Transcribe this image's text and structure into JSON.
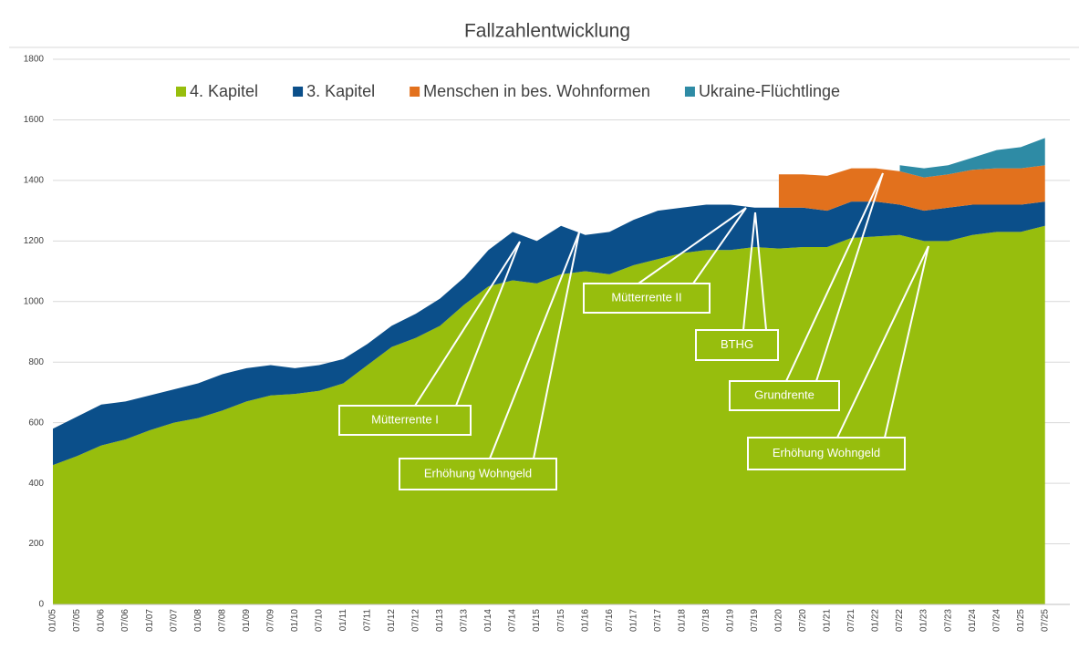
{
  "chart_data": {
    "type": "stacked-area",
    "title": "Fallzahlentwicklung",
    "categories": [
      "01/05",
      "07/05",
      "01/06",
      "07/06",
      "01/07",
      "07/07",
      "01/08",
      "07/08",
      "01/09",
      "07/09",
      "01/10",
      "07/10",
      "01/11",
      "07/11",
      "01/12",
      "07/12",
      "01/13",
      "07/13",
      "01/14",
      "07/14",
      "01/15",
      "07/15",
      "01/16",
      "07/16",
      "01/17",
      "07/17",
      "01/18",
      "07/18",
      "01/19",
      "07/19",
      "01/20",
      "07/20",
      "01/21",
      "07/21",
      "01/22",
      "07/22",
      "01/23",
      "07/23",
      "01/24",
      "07/24",
      "01/25",
      "07/25"
    ],
    "series": [
      {
        "name": "4. Kapitel",
        "color": "#97be0d",
        "values": [
          460,
          490,
          525,
          545,
          575,
          600,
          615,
          640,
          670,
          690,
          695,
          705,
          730,
          790,
          850,
          880,
          920,
          990,
          1050,
          1070,
          1060,
          1090,
          1100,
          1090,
          1120,
          1140,
          1160,
          1170,
          1170,
          1180,
          1175,
          1180,
          1180,
          1210,
          1215,
          1220,
          1200,
          1200,
          1220,
          1230,
          1230,
          1250
        ]
      },
      {
        "name": "3. Kapitel",
        "color": "#0b4f8a",
        "values": [
          120,
          130,
          135,
          125,
          115,
          110,
          115,
          120,
          110,
          100,
          85,
          85,
          80,
          70,
          70,
          80,
          90,
          90,
          120,
          160,
          140,
          160,
          120,
          140,
          150,
          160,
          150,
          150,
          150,
          130,
          135,
          130,
          120,
          120,
          115,
          100,
          100,
          110,
          100,
          90,
          90,
          80
        ]
      },
      {
        "name": "Menschen in bes. Wohnformen",
        "color": "#e2711d",
        "values": [
          null,
          null,
          null,
          null,
          null,
          null,
          null,
          null,
          null,
          null,
          null,
          null,
          null,
          null,
          null,
          null,
          null,
          null,
          null,
          null,
          null,
          null,
          null,
          null,
          null,
          null,
          null,
          null,
          null,
          null,
          110,
          110,
          115,
          110,
          110,
          110,
          110,
          110,
          115,
          120,
          120,
          120
        ]
      },
      {
        "name": "Ukraine-Flüchtlinge",
        "color": "#2e8ba5",
        "values": [
          null,
          null,
          null,
          null,
          null,
          null,
          null,
          null,
          null,
          null,
          null,
          null,
          null,
          null,
          null,
          null,
          null,
          null,
          null,
          null,
          null,
          null,
          null,
          null,
          null,
          null,
          null,
          null,
          null,
          null,
          null,
          null,
          null,
          null,
          null,
          20,
          30,
          30,
          40,
          60,
          70,
          90
        ]
      }
    ],
    "ylim": [
      0,
      1800
    ],
    "yticks": [
      0,
      200,
      400,
      600,
      800,
      1000,
      1200,
      1400,
      1600,
      1800
    ],
    "grid": true,
    "legend": "top",
    "annotations": [
      "Mütterrente I",
      "Erhöhung Wohngeld",
      "Mütterrente II",
      "BTHG",
      "Grundrente",
      "Erhöhung Wohngeld"
    ]
  }
}
